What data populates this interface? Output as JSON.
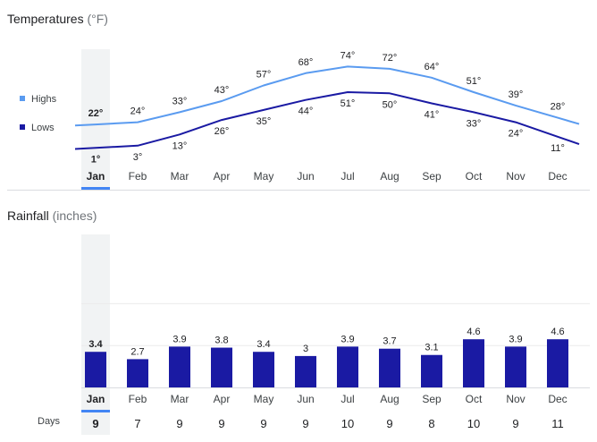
{
  "temperature": {
    "title": "Temperatures",
    "unit": "(°F)",
    "legend": [
      {
        "label": "Highs",
        "color": "#5a9bf0"
      },
      {
        "label": "Lows",
        "color": "#1a1aa3"
      }
    ]
  },
  "rainfall": {
    "title": "Rainfall",
    "unit": "(inches)",
    "days_label": "Days",
    "bar_color": "#1a1aa3"
  },
  "selected_month": "Jan",
  "chart_data": [
    {
      "type": "line",
      "title": "Temperatures",
      "x": [
        "Jan",
        "Feb",
        "Mar",
        "Apr",
        "May",
        "Jun",
        "Jul",
        "Aug",
        "Sep",
        "Oct",
        "Nov",
        "Dec"
      ],
      "series": [
        {
          "name": "Highs",
          "values": [
            22,
            24,
            33,
            43,
            57,
            68,
            74,
            72,
            64,
            51,
            39,
            28
          ],
          "labels": [
            "22°",
            "24°",
            "33°",
            "43°",
            "57°",
            "68°",
            "74°",
            "72°",
            "64°",
            "51°",
            "39°",
            "28°"
          ]
        },
        {
          "name": "Lows",
          "values": [
            1,
            3,
            13,
            26,
            35,
            44,
            51,
            50,
            41,
            33,
            24,
            11
          ],
          "labels": [
            "1°",
            "3°",
            "13°",
            "26°",
            "35°",
            "44°",
            "51°",
            "50°",
            "41°",
            "33°",
            "24°",
            "11°"
          ]
        }
      ],
      "ylabel": "°F",
      "grid": false,
      "legend": "left"
    },
    {
      "type": "bar",
      "title": "Rainfall",
      "categories": [
        "Jan",
        "Feb",
        "Mar",
        "Apr",
        "May",
        "Jun",
        "Jul",
        "Aug",
        "Sep",
        "Oct",
        "Nov",
        "Dec"
      ],
      "values": [
        3.4,
        2.7,
        3.9,
        3.8,
        3.4,
        3,
        3.9,
        3.7,
        3.1,
        4.6,
        3.9,
        4.6
      ],
      "labels": [
        "3.4",
        "2.7",
        "3.9",
        "3.8",
        "3.4",
        "3",
        "3.9",
        "3.7",
        "3.1",
        "4.6",
        "3.9",
        "4.6"
      ],
      "days": [
        9,
        7,
        9,
        9,
        9,
        9,
        10,
        9,
        8,
        10,
        9,
        11
      ],
      "ylabel": "inches",
      "grid": true
    }
  ]
}
